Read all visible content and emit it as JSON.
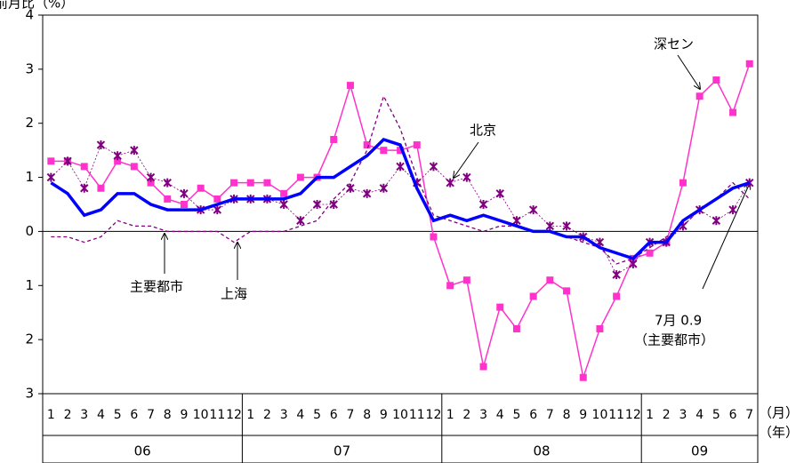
{
  "chart_data": {
    "type": "line",
    "title": "前月比（%）",
    "categories": [
      "1",
      "2",
      "3",
      "4",
      "5",
      "6",
      "7",
      "8",
      "9",
      "10",
      "11",
      "12",
      "1",
      "2",
      "3",
      "4",
      "5",
      "6",
      "7",
      "8",
      "9",
      "10",
      "11",
      "12",
      "1",
      "2",
      "3",
      "4",
      "5",
      "6",
      "7",
      "8",
      "9",
      "10",
      "11",
      "12",
      "1",
      "2",
      "3",
      "4",
      "5",
      "6",
      "7"
    ],
    "years": [
      "06",
      "07",
      "08",
      "09"
    ],
    "x_unit": "（月）",
    "year_unit": "（年）",
    "ylim": [
      -3,
      4
    ],
    "yticks": [
      {
        "value": -3,
        "label": "3"
      },
      {
        "value": -2,
        "label": "2"
      },
      {
        "value": -1,
        "label": "1"
      },
      0,
      1,
      2,
      3,
      4
    ],
    "series": [
      {
        "name": "深セン",
        "color": "#ff33cc",
        "style": "square-markers",
        "values": [
          1.3,
          1.3,
          1.2,
          0.8,
          1.3,
          1.2,
          0.9,
          0.6,
          0.5,
          0.8,
          0.6,
          0.9,
          0.9,
          0.9,
          0.7,
          1.0,
          1.0,
          1.7,
          2.7,
          1.6,
          1.5,
          1.5,
          1.6,
          -0.1,
          -1.0,
          -0.9,
          -2.5,
          -1.4,
          -1.8,
          -1.2,
          -0.9,
          -1.1,
          -2.7,
          -1.8,
          -1.2,
          -0.5,
          -0.4,
          -0.2,
          0.9,
          2.5,
          2.8,
          2.2,
          3.1
        ]
      },
      {
        "name": "北京",
        "color": "#800080",
        "style": "x-markers",
        "values": [
          1.0,
          1.3,
          0.8,
          1.6,
          1.4,
          1.5,
          1.0,
          0.9,
          0.7,
          0.4,
          0.4,
          0.6,
          0.6,
          0.6,
          0.5,
          0.2,
          0.5,
          0.5,
          0.8,
          0.7,
          0.8,
          1.2,
          0.9,
          1.2,
          0.9,
          1.0,
          0.5,
          0.7,
          0.2,
          0.4,
          0.1,
          0.1,
          -0.1,
          -0.2,
          -0.8,
          -0.6,
          -0.2,
          -0.2,
          0.1,
          0.4,
          0.2,
          0.4,
          0.9
        ]
      },
      {
        "name": "上海",
        "color": "#800080",
        "style": "dashed",
        "values": [
          -0.1,
          -0.1,
          -0.2,
          -0.1,
          0.2,
          0.1,
          0.1,
          0.0,
          0.0,
          0.0,
          0.0,
          -0.2,
          0.0,
          0.0,
          0.0,
          0.1,
          0.2,
          0.6,
          0.9,
          1.5,
          2.5,
          1.9,
          1.0,
          0.3,
          0.2,
          0.1,
          0.0,
          0.1,
          0.1,
          0.0,
          0.0,
          -0.1,
          -0.2,
          -0.3,
          -0.6,
          -0.5,
          -0.3,
          -0.1,
          0.1,
          0.4,
          0.6,
          0.9,
          0.6
        ]
      },
      {
        "name": "主要都市",
        "color": "#0000ff",
        "style": "thick",
        "values": [
          0.9,
          0.7,
          0.3,
          0.4,
          0.7,
          0.7,
          0.5,
          0.4,
          0.4,
          0.4,
          0.5,
          0.6,
          0.6,
          0.6,
          0.6,
          0.7,
          1.0,
          1.0,
          1.2,
          1.4,
          1.7,
          1.6,
          0.8,
          0.2,
          0.3,
          0.2,
          0.3,
          0.2,
          0.1,
          0.0,
          0.0,
          -0.1,
          -0.1,
          -0.3,
          -0.4,
          -0.5,
          -0.2,
          -0.2,
          0.2,
          0.4,
          0.6,
          0.8,
          0.9
        ]
      }
    ],
    "annotations": [
      "7月 0.9",
      "（主要都市）"
    ]
  }
}
